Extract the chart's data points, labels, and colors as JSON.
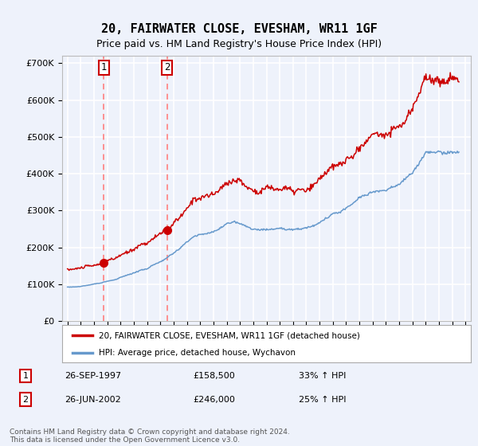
{
  "title": "20, FAIRWATER CLOSE, EVESHAM, WR11 1GF",
  "subtitle": "Price paid vs. HM Land Registry's House Price Index (HPI)",
  "ylim": [
    0,
    720000
  ],
  "yticks": [
    0,
    100000,
    200000,
    300000,
    400000,
    500000,
    600000,
    700000
  ],
  "ytick_labels": [
    "£0",
    "£100K",
    "£200K",
    "£300K",
    "£400K",
    "£500K",
    "£600K",
    "£700K"
  ],
  "background_color": "#eef2fb",
  "plot_bg_color": "#eef2fb",
  "grid_color": "#ffffff",
  "transaction1": {
    "price": 158500,
    "label": "1",
    "pct": "33% ↑ HPI",
    "date_str": "26-SEP-1997",
    "price_str": "£158,500"
  },
  "transaction2": {
    "price": 246000,
    "label": "2",
    "pct": "25% ↑ HPI",
    "date_str": "26-JUN-2002",
    "price_str": "£246,000"
  },
  "legend_line1": "20, FAIRWATER CLOSE, EVESHAM, WR11 1GF (detached house)",
  "legend_line2": "HPI: Average price, detached house, Wychavon",
  "footer": "Contains HM Land Registry data © Crown copyright and database right 2024.\nThis data is licensed under the Open Government Licence v3.0.",
  "line_color_red": "#cc0000",
  "line_color_blue": "#6699cc",
  "dashed_line_color": "#ff8888"
}
